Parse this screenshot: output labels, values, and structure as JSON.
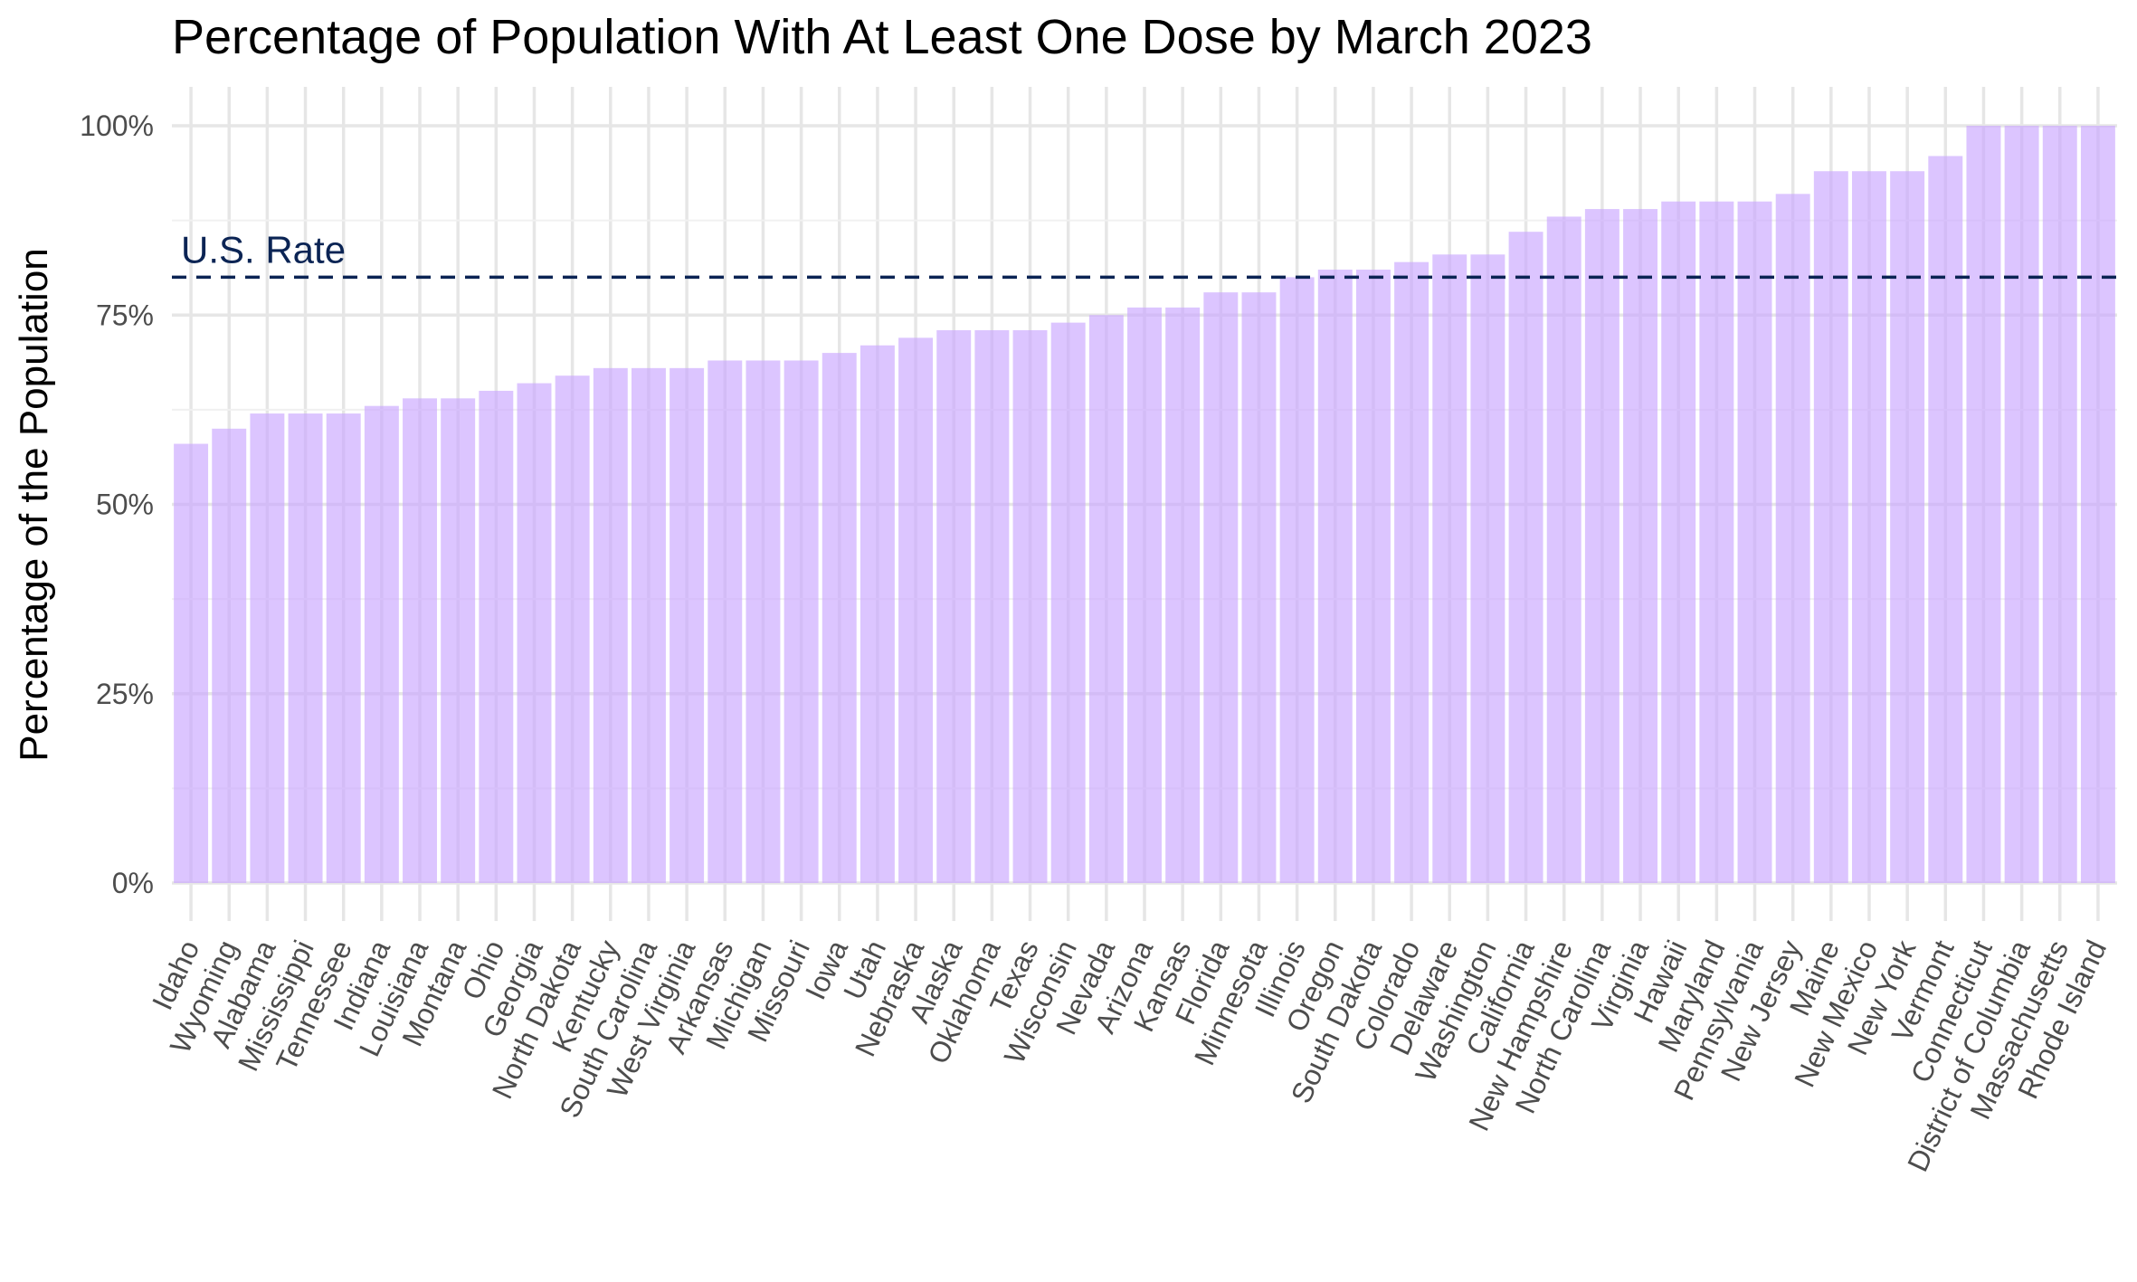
{
  "chart_data": {
    "type": "bar",
    "title": "Percentage of Population With At Least One Dose by March 2023",
    "xlabel": "",
    "ylabel": "Percentage of the Population",
    "ylim": [
      0,
      100
    ],
    "yticks": [
      "0%",
      "25%",
      "50%",
      "75%",
      "100%"
    ],
    "grid": true,
    "categories": [
      "Idaho",
      "Wyoming",
      "Alabama",
      "Mississippi",
      "Tennessee",
      "Indiana",
      "Louisiana",
      "Montana",
      "Ohio",
      "Georgia",
      "North Dakota",
      "Kentucky",
      "South Carolina",
      "West Virginia",
      "Arkansas",
      "Michigan",
      "Missouri",
      "Iowa",
      "Utah",
      "Nebraska",
      "Alaska",
      "Oklahoma",
      "Texas",
      "Wisconsin",
      "Nevada",
      "Arizona",
      "Kansas",
      "Florida",
      "Minnesota",
      "Illinois",
      "Oregon",
      "South Dakota",
      "Colorado",
      "Delaware",
      "Washington",
      "California",
      "New Hampshire",
      "North Carolina",
      "Virginia",
      "Hawaii",
      "Maryland",
      "Pennsylvania",
      "New Jersey",
      "Maine",
      "New Mexico",
      "New York",
      "Vermont",
      "Connecticut",
      "District of Columbia",
      "Massachusetts",
      "Rhode Island"
    ],
    "values": [
      58,
      60,
      62,
      62,
      62,
      63,
      64,
      64,
      65,
      66,
      67,
      68,
      68,
      68,
      69,
      69,
      69,
      70,
      71,
      72,
      73,
      73,
      73,
      74,
      75,
      76,
      76,
      78,
      78,
      80,
      81,
      81,
      82,
      83,
      83,
      86,
      88,
      89,
      89,
      90,
      90,
      90,
      91,
      94,
      94,
      94,
      96,
      100,
      100,
      100,
      100
    ],
    "reference_line": {
      "label": "U.S. Rate",
      "value": 80
    },
    "colors": {
      "bar": "#c9a6ff",
      "reference_line": "#0b2454"
    }
  }
}
